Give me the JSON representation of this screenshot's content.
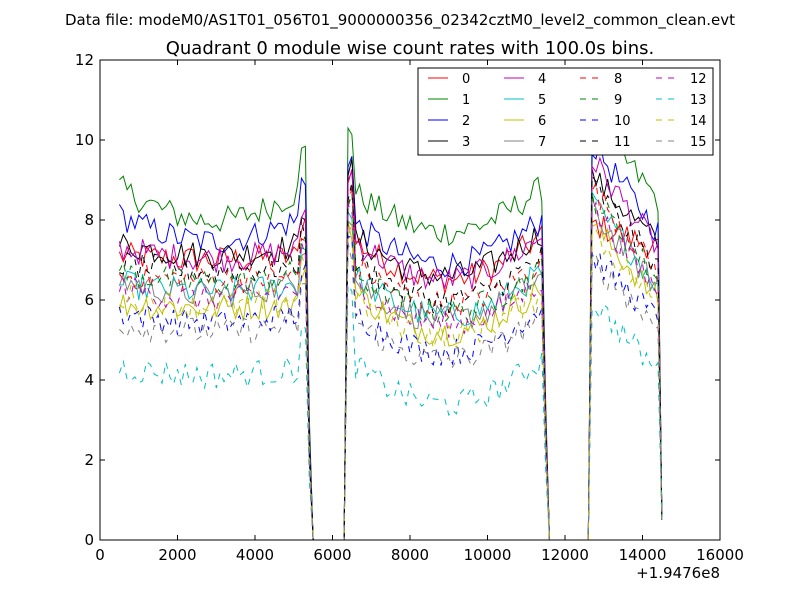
{
  "header_text": "Data file: modeM0/AS1T01_056T01_9000000356_02342cztM0_level2_common_clean.evt",
  "chart_data": {
    "type": "line",
    "title": "Quadrant 0 module wise count rates with 100.0s bins.",
    "xlabel": "",
    "ylabel": "",
    "x_offset_label": "+1.9476e8",
    "xlim": [
      0,
      16000
    ],
    "ylim": [
      0,
      12
    ],
    "x_ticks": [
      0,
      2000,
      4000,
      6000,
      8000,
      10000,
      12000,
      14000,
      16000
    ],
    "x_tick_labels": [
      "0",
      "2000",
      "4000",
      "6000",
      "8000",
      "10000",
      "12000",
      "14000",
      "16000"
    ],
    "y_ticks": [
      0,
      2,
      4,
      6,
      8,
      10,
      12
    ],
    "y_tick_labels": [
      "0",
      "2",
      "4",
      "6",
      "8",
      "10",
      "12"
    ],
    "grid": false,
    "legend_position": "top-right",
    "segments": [
      {
        "start": 500,
        "end": 5300
      },
      {
        "start": 6400,
        "end": 11400
      },
      {
        "start": 12700,
        "end": 14400
      }
    ],
    "series": [
      {
        "name": "0",
        "color": "#ff0000",
        "dash": "solid",
        "levels": [
          7.1,
          7.0,
          7.6,
          7.9
        ]
      },
      {
        "name": "1",
        "color": "#008000",
        "dash": "solid",
        "levels": [
          8.8,
          7.9,
          8.8,
          10.5
        ]
      },
      {
        "name": "2",
        "color": "#0000ff",
        "dash": "solid",
        "levels": [
          8.1,
          7.4,
          8.0,
          9.9
        ]
      },
      {
        "name": "3",
        "color": "#000000",
        "dash": "solid",
        "levels": [
          7.4,
          7.1,
          7.7,
          9.1
        ]
      },
      {
        "name": "4",
        "color": "#bf00bf",
        "dash": "solid",
        "levels": [
          7.3,
          7.0,
          7.6,
          9.5
        ]
      },
      {
        "name": "5",
        "color": "#00bfbf",
        "dash": "solid",
        "levels": [
          6.4,
          6.2,
          6.7,
          8.4
        ]
      },
      {
        "name": "6",
        "color": "#bfbf00",
        "dash": "solid",
        "levels": [
          5.9,
          5.8,
          6.3,
          7.9
        ]
      },
      {
        "name": "7",
        "color": "#808080",
        "dash": "solid",
        "levels": [
          6.5,
          6.1,
          6.6,
          8.2
        ]
      },
      {
        "name": "8",
        "color": "#ff0000",
        "dash": "dashed",
        "levels": [
          6.6,
          6.5,
          7.0,
          8.8
        ]
      },
      {
        "name": "9",
        "color": "#008000",
        "dash": "dashed",
        "levels": [
          6.7,
          6.4,
          6.8,
          8.6
        ]
      },
      {
        "name": "10",
        "color": "#0000ff",
        "dash": "dashed",
        "levels": [
          5.7,
          5.4,
          5.8,
          7.1
        ]
      },
      {
        "name": "11",
        "color": "#000000",
        "dash": "dashed",
        "levels": [
          6.9,
          6.7,
          7.1,
          8.9
        ]
      },
      {
        "name": "12",
        "color": "#bf00bf",
        "dash": "dashed",
        "levels": [
          6.3,
          6.0,
          6.5,
          8.3
        ]
      },
      {
        "name": "13",
        "color": "#00bfbf",
        "dash": "dashed",
        "levels": [
          4.3,
          4.1,
          4.5,
          6.0
        ]
      },
      {
        "name": "14",
        "color": "#bfbf00",
        "dash": "dashed",
        "levels": [
          6.1,
          5.8,
          6.2,
          7.7
        ]
      },
      {
        "name": "15",
        "color": "#808080",
        "dash": "dashed",
        "levels": [
          5.4,
          5.2,
          5.6,
          7.0
        ]
      }
    ]
  }
}
